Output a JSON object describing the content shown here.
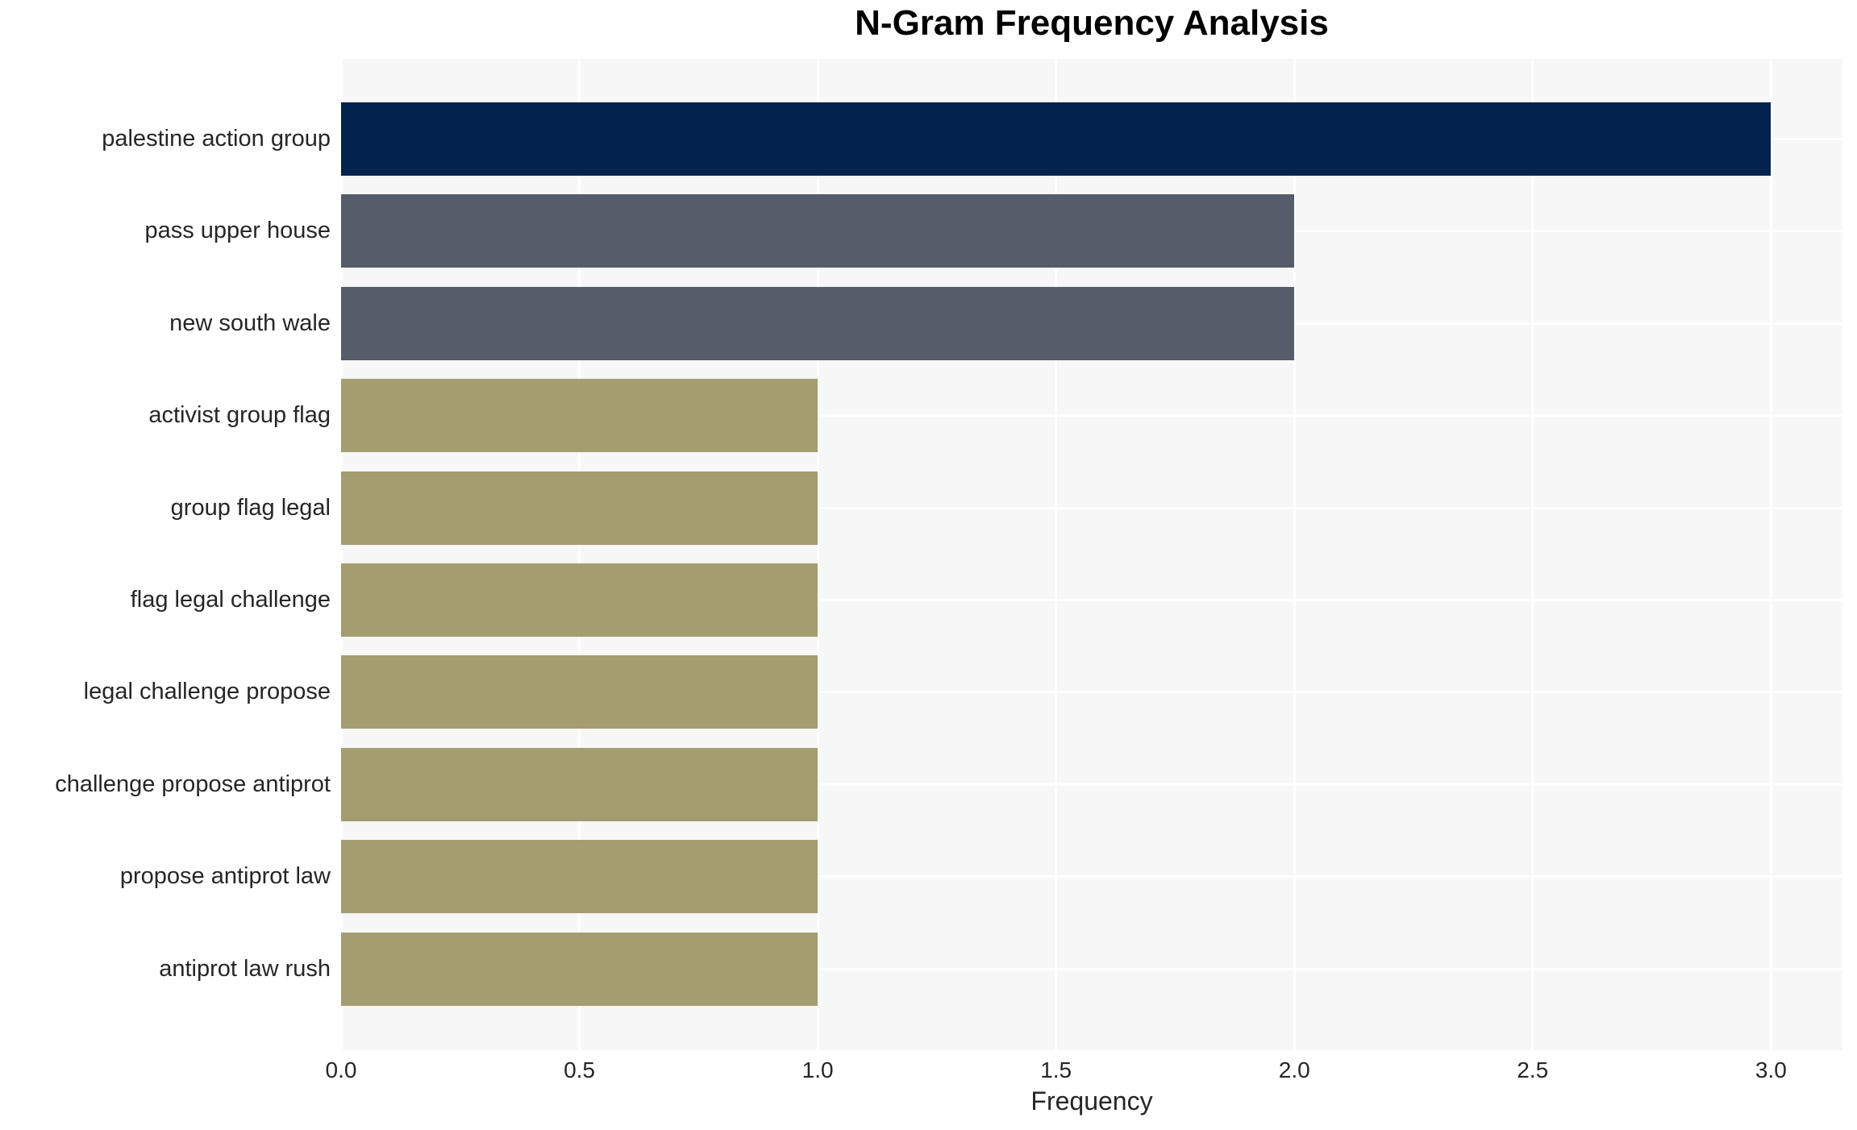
{
  "chart_data": {
    "type": "bar",
    "orientation": "horizontal",
    "title": "N-Gram Frequency Analysis",
    "xlabel": "Frequency",
    "ylabel": "",
    "categories": [
      "palestine action group",
      "pass upper house",
      "new south wale",
      "activist group flag",
      "group flag legal",
      "flag legal challenge",
      "legal challenge propose",
      "challenge propose antiprot",
      "propose antiprot law",
      "antiprot law rush"
    ],
    "values": [
      3,
      2,
      2,
      1,
      1,
      1,
      1,
      1,
      1,
      1
    ],
    "bar_colors": [
      "#02234d",
      "#575c6b",
      "#575c6b",
      "#a49d70",
      "#a49d70",
      "#a49d70",
      "#a49d70",
      "#a49d70",
      "#a49d70",
      "#a49d70"
    ],
    "xlim": [
      0.0,
      3.15
    ],
    "xticks": [
      0.0,
      0.5,
      1.0,
      1.5,
      2.0,
      2.5,
      3.0
    ],
    "xtick_labels": [
      "0.0",
      "0.5",
      "1.0",
      "1.5",
      "2.0",
      "2.5",
      "3.0"
    ],
    "grid": true,
    "grid_style": "white lines on light-gray panel, vertical at major ticks, horizontal at category centers",
    "legend": false,
    "colors": {
      "figure_background": "#ffffff",
      "plot_background": "#f7f7f7",
      "grid_line": "#ffffff",
      "title_text": "#000000",
      "tick_text": "#262626"
    }
  }
}
